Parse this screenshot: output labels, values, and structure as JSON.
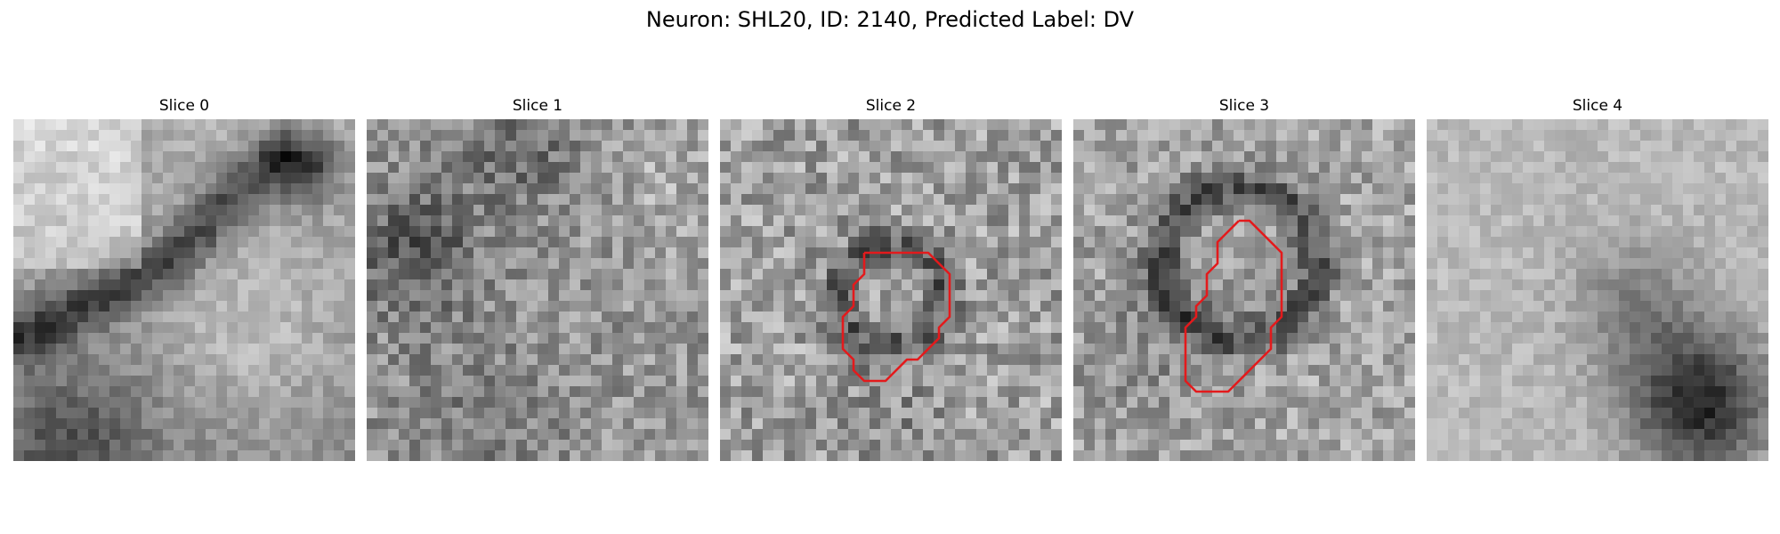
{
  "figure": {
    "title": "Neuron: SHL20, ID: 2140, Predicted Label: DV"
  },
  "panels": [
    {
      "title": "Slice 0",
      "image": "grayscale-microscopy-slice",
      "has_contour": false
    },
    {
      "title": "Slice 1",
      "image": "grayscale-microscopy-slice",
      "has_contour": false
    },
    {
      "title": "Slice 2",
      "image": "grayscale-microscopy-slice",
      "has_contour": true
    },
    {
      "title": "Slice 3",
      "image": "grayscale-microscopy-slice",
      "has_contour": true
    },
    {
      "title": "Slice 4",
      "image": "grayscale-microscopy-slice",
      "has_contour": false
    }
  ],
  "colors": {
    "contour": "#e31a1c",
    "background": "#ffffff"
  }
}
